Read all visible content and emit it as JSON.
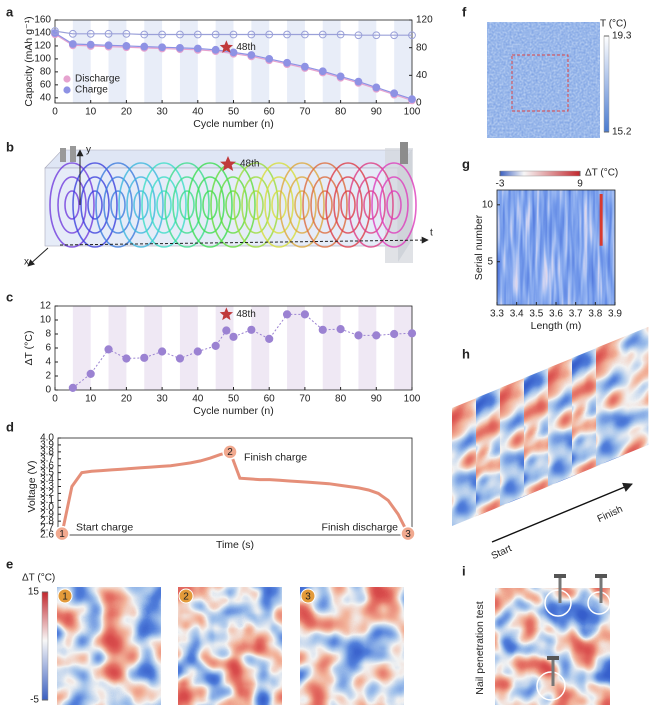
{
  "panel_labels": [
    "a",
    "b",
    "c",
    "d",
    "e",
    "f",
    "g",
    "h",
    "i"
  ],
  "chart_data": [
    {
      "type": "line",
      "xlabel": "Cycle number (n)",
      "ylabel": "Capacity (mAh g⁻¹)",
      "x": [
        0,
        5,
        10,
        15,
        20,
        25,
        30,
        35,
        40,
        45,
        50,
        55,
        60,
        65,
        70,
        75,
        80,
        85,
        90,
        95,
        100
      ],
      "xlim": [
        0,
        100
      ],
      "xticks": [
        0,
        10,
        20,
        30,
        40,
        50,
        60,
        70,
        80,
        90,
        100
      ],
      "ylim": [
        32,
        160
      ],
      "yticks": [
        40,
        60,
        80,
        100,
        120,
        140,
        160
      ],
      "y2lim": [
        0,
        120
      ],
      "y2ticks": [
        0,
        40,
        80,
        120
      ],
      "legend": "lower left",
      "series": [
        {
          "name": "Discharge",
          "color": "#e6a3cf",
          "marker": "filled",
          "values": [
            138,
            121,
            120,
            119,
            118,
            117,
            116,
            115,
            114,
            112,
            108,
            104,
            98,
            92,
            86,
            79,
            71,
            63,
            54,
            45,
            36
          ]
        },
        {
          "name": "Charge",
          "color": "#8e92e4",
          "marker": "filled",
          "values": [
            140,
            123,
            122,
            121,
            120,
            119,
            118,
            117,
            116,
            114,
            110,
            106,
            100,
            94,
            88,
            81,
            73,
            65,
            56,
            47,
            38
          ]
        },
        {
          "color": "#9aa0d8",
          "marker": "open",
          "axis": "y2",
          "values": [
            104,
            100,
            100,
            100,
            100,
            99,
            99,
            99,
            99,
            99,
            99,
            99,
            99,
            99,
            99,
            99,
            99,
            98,
            98,
            98,
            98
          ]
        }
      ],
      "annotations": [
        {
          "text": "48th",
          "x": 48,
          "y": 118
        }
      ]
    },
    {
      "type": "scatter",
      "xlabel": "Cycle number (n)",
      "ylabel": "ΔT (°C)",
      "color": "#9b82d2",
      "x": [
        5,
        10,
        15,
        20,
        25,
        30,
        35,
        40,
        45,
        48,
        50,
        55,
        60,
        65,
        70,
        75,
        80,
        85,
        90,
        95,
        100
      ],
      "values": [
        0.3,
        2.3,
        5.8,
        4.5,
        4.6,
        5.5,
        4.5,
        5.5,
        6.3,
        8.5,
        7.6,
        8.6,
        7.3,
        10.8,
        10.8,
        8.6,
        8.7,
        7.8,
        7.8,
        8.0,
        8.1
      ],
      "xlim": [
        0,
        100
      ],
      "xticks": [
        0,
        10,
        20,
        30,
        40,
        50,
        60,
        70,
        80,
        90,
        100
      ],
      "ylim": [
        0,
        12
      ],
      "yticks": [
        0,
        2,
        4,
        6,
        8,
        10,
        12
      ],
      "annotations": [
        {
          "text": "48th",
          "x": 48,
          "y": 10.8
        }
      ]
    },
    {
      "type": "line",
      "xlabel": "Time (s)",
      "ylabel": "Voltage (V)",
      "color": "#e07b62",
      "values": [
        2.62,
        3.3,
        3.5,
        3.52,
        3.53,
        3.54,
        3.55,
        3.56,
        3.57,
        3.58,
        3.59,
        3.6,
        3.62,
        3.64,
        3.67,
        3.71,
        3.76,
        3.8,
        3.42,
        3.41,
        3.4,
        3.4,
        3.39,
        3.38,
        3.37,
        3.36,
        3.35,
        3.34,
        3.32,
        3.3,
        3.28,
        3.25,
        3.2,
        3.1,
        2.9,
        2.62
      ],
      "ylim": [
        2.6,
        4.0
      ],
      "yticks": [
        2.6,
        2.7,
        2.8,
        2.9,
        {
          "value": 3,
          "label": "3.0"
        },
        3.1,
        3.2,
        3.3,
        3.4,
        3.5,
        3.6,
        3.7,
        3.8,
        3.9,
        {
          "value": 4,
          "label": "4.0"
        }
      ],
      "annotations": [
        {
          "marker": "1",
          "text": "Start charge"
        },
        {
          "marker": "2",
          "text": "Finish charge"
        },
        {
          "marker": "3",
          "text": "Finish discharge"
        }
      ]
    },
    {
      "type": "heatmap",
      "xlabel": "Length (m)",
      "ylabel": "Serial number",
      "xlim": [
        3.3,
        3.9
      ],
      "xticks": [
        3.3,
        3.4,
        3.5,
        3.6,
        3.7,
        3.8,
        3.9
      ],
      "ylim": [
        1.2,
        11.3
      ],
      "yticks": [
        5,
        10
      ],
      "colorbar": {
        "label": "ΔT (°C)",
        "lim": [
          -3,
          9
        ],
        "ticks": [
          -3,
          9
        ]
      }
    }
  ],
  "figures": {
    "b": {
      "axes": [
        "x",
        "y",
        "t"
      ],
      "annotation": "48th"
    },
    "e": {
      "colorbar": {
        "label": "ΔT (°C)",
        "lim": [
          -5,
          15
        ],
        "ticks": [
          15,
          -5
        ]
      },
      "frames": [
        "1",
        "2",
        "3"
      ]
    },
    "f": {
      "colorbar": {
        "label": "T (°C)",
        "lim": [
          15.2,
          19.3
        ],
        "ticks": [
          19.3,
          15.2
        ]
      }
    },
    "h": {
      "start": "Start",
      "finish": "Finish"
    },
    "i": {
      "label": "Nail penetration test"
    }
  }
}
